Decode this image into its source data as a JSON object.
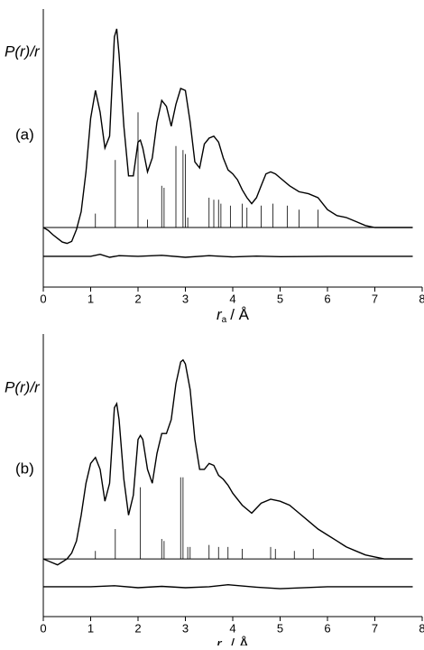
{
  "chart_data": [
    {
      "type": "line",
      "panel_label": "(a)",
      "ylabel": "P(r)/r",
      "xlabel": {
        "symbol": "r",
        "subscript": "a",
        "unit": "/ Å"
      },
      "xlim": [
        0,
        8
      ],
      "xticks": [
        0,
        1,
        2,
        3,
        4,
        5,
        6,
        7,
        8
      ],
      "ylim": [
        -3,
        11
      ],
      "color": "#000000",
      "curve": {
        "x": [
          0,
          0.1,
          0.2,
          0.3,
          0.4,
          0.5,
          0.6,
          0.7,
          0.8,
          0.9,
          1.0,
          1.1,
          1.2,
          1.3,
          1.4,
          1.5,
          1.55,
          1.6,
          1.7,
          1.8,
          1.9,
          2.0,
          2.05,
          2.1,
          2.2,
          2.3,
          2.4,
          2.5,
          2.6,
          2.7,
          2.8,
          2.9,
          3.0,
          3.1,
          3.2,
          3.3,
          3.4,
          3.5,
          3.6,
          3.7,
          3.8,
          3.9,
          4.0,
          4.1,
          4.2,
          4.3,
          4.4,
          4.5,
          4.6,
          4.7,
          4.8,
          4.9,
          5.0,
          5.2,
          5.4,
          5.6,
          5.8,
          6.0,
          6.2,
          6.4,
          6.6,
          6.8,
          7.0,
          7.8
        ],
        "values": [
          0,
          -0.14,
          -0.36,
          -0.55,
          -0.73,
          -0.8,
          -0.7,
          -0.1,
          0.8,
          2.8,
          5.5,
          6.9,
          5.8,
          4.0,
          4.6,
          9.6,
          10,
          8.7,
          5.1,
          2.6,
          2.6,
          4.3,
          4.4,
          4.0,
          2.8,
          3.5,
          5.3,
          6.4,
          6.1,
          5.1,
          6.2,
          7.0,
          6.9,
          5.3,
          3.3,
          3.0,
          4.2,
          4.5,
          4.6,
          4.3,
          3.5,
          2.9,
          2.7,
          2.4,
          1.9,
          1.5,
          1.2,
          1.5,
          2.1,
          2.7,
          2.8,
          2.7,
          2.5,
          2.1,
          1.8,
          1.7,
          1.5,
          0.9,
          0.6,
          0.5,
          0.3,
          0.1,
          0,
          0
        ]
      },
      "sticks": {
        "x": [
          1.1,
          1.52,
          2.0,
          2.2,
          2.5,
          2.55,
          2.8,
          2.95,
          3.0,
          3.05,
          3.5,
          3.6,
          3.7,
          3.75,
          3.95,
          4.2,
          4.3,
          4.6,
          4.85,
          5.15,
          5.4,
          5.8
        ],
        "values": [
          0.7,
          3.4,
          5.8,
          0.4,
          2.1,
          2.0,
          4.1,
          3.9,
          3.7,
          0.5,
          1.5,
          1.4,
          1.4,
          1.2,
          1.1,
          1.2,
          1.0,
          1.1,
          1.2,
          1.1,
          0.9,
          0.9
        ]
      },
      "residual": {
        "x": [
          0,
          1.0,
          1.2,
          1.4,
          1.6,
          2.0,
          2.5,
          3.0,
          3.5,
          4.0,
          4.5,
          5.0,
          6.0,
          7.8
        ],
        "values": [
          -1.45,
          -1.45,
          -1.35,
          -1.5,
          -1.42,
          -1.45,
          -1.4,
          -1.5,
          -1.42,
          -1.48,
          -1.44,
          -1.47,
          -1.45,
          -1.45
        ]
      }
    },
    {
      "type": "line",
      "panel_label": "(b)",
      "ylabel": "P(r)/r",
      "xlabel": {
        "symbol": "r",
        "subscript": "a",
        "unit": "/ Å"
      },
      "xlim": [
        0,
        8
      ],
      "xticks": [
        0,
        1,
        2,
        3,
        4,
        5,
        6,
        7,
        8
      ],
      "ylim": [
        -2.9,
        11.3
      ],
      "color": "#000000",
      "curve": {
        "x": [
          0,
          0.2,
          0.3,
          0.5,
          0.6,
          0.7,
          0.8,
          0.9,
          1.0,
          1.1,
          1.2,
          1.3,
          1.4,
          1.5,
          1.55,
          1.6,
          1.7,
          1.8,
          1.9,
          2.0,
          2.05,
          2.1,
          2.2,
          2.3,
          2.4,
          2.5,
          2.6,
          2.7,
          2.8,
          2.9,
          2.95,
          3.0,
          3.1,
          3.2,
          3.3,
          3.4,
          3.5,
          3.6,
          3.7,
          3.8,
          3.9,
          4.0,
          4.2,
          4.4,
          4.6,
          4.8,
          5.0,
          5.2,
          5.4,
          5.6,
          5.8,
          6.0,
          6.2,
          6.4,
          6.6,
          6.8,
          7.0,
          7.2,
          7.8
        ],
        "values": [
          0,
          -0.2,
          -0.3,
          0,
          0.3,
          0.9,
          2.2,
          3.8,
          4.8,
          5.1,
          4.5,
          2.9,
          3.8,
          7.6,
          7.8,
          7.0,
          4.0,
          2.2,
          3.2,
          6.0,
          6.2,
          6.0,
          4.5,
          3.8,
          5.3,
          6.3,
          6.3,
          7.0,
          8.8,
          9.9,
          10.0,
          9.8,
          8.5,
          6.0,
          4.5,
          4.5,
          4.8,
          4.7,
          4.2,
          4.0,
          3.7,
          3.3,
          2.7,
          2.3,
          2.8,
          3.0,
          2.9,
          2.7,
          2.3,
          1.9,
          1.5,
          1.2,
          0.9,
          0.6,
          0.4,
          0.2,
          0.1,
          0,
          0
        ]
      },
      "sticks": {
        "x": [
          1.1,
          1.52,
          2.05,
          2.5,
          2.55,
          2.9,
          2.95,
          3.05,
          3.1,
          3.5,
          3.7,
          3.9,
          4.2,
          4.8,
          4.9,
          5.3,
          5.7
        ],
        "values": [
          0.4,
          1.5,
          3.6,
          1.0,
          0.9,
          4.1,
          4.1,
          0.6,
          0.6,
          0.7,
          0.6,
          0.6,
          0.5,
          0.6,
          0.5,
          0.4,
          0.5
        ]
      },
      "residual": {
        "x": [
          0,
          1.0,
          1.5,
          2.0,
          2.5,
          3.0,
          3.5,
          3.9,
          4.5,
          5.0,
          6.0,
          7.8
        ],
        "values": [
          -1.4,
          -1.4,
          -1.35,
          -1.45,
          -1.38,
          -1.45,
          -1.4,
          -1.3,
          -1.42,
          -1.5,
          -1.4,
          -1.4
        ]
      }
    }
  ]
}
